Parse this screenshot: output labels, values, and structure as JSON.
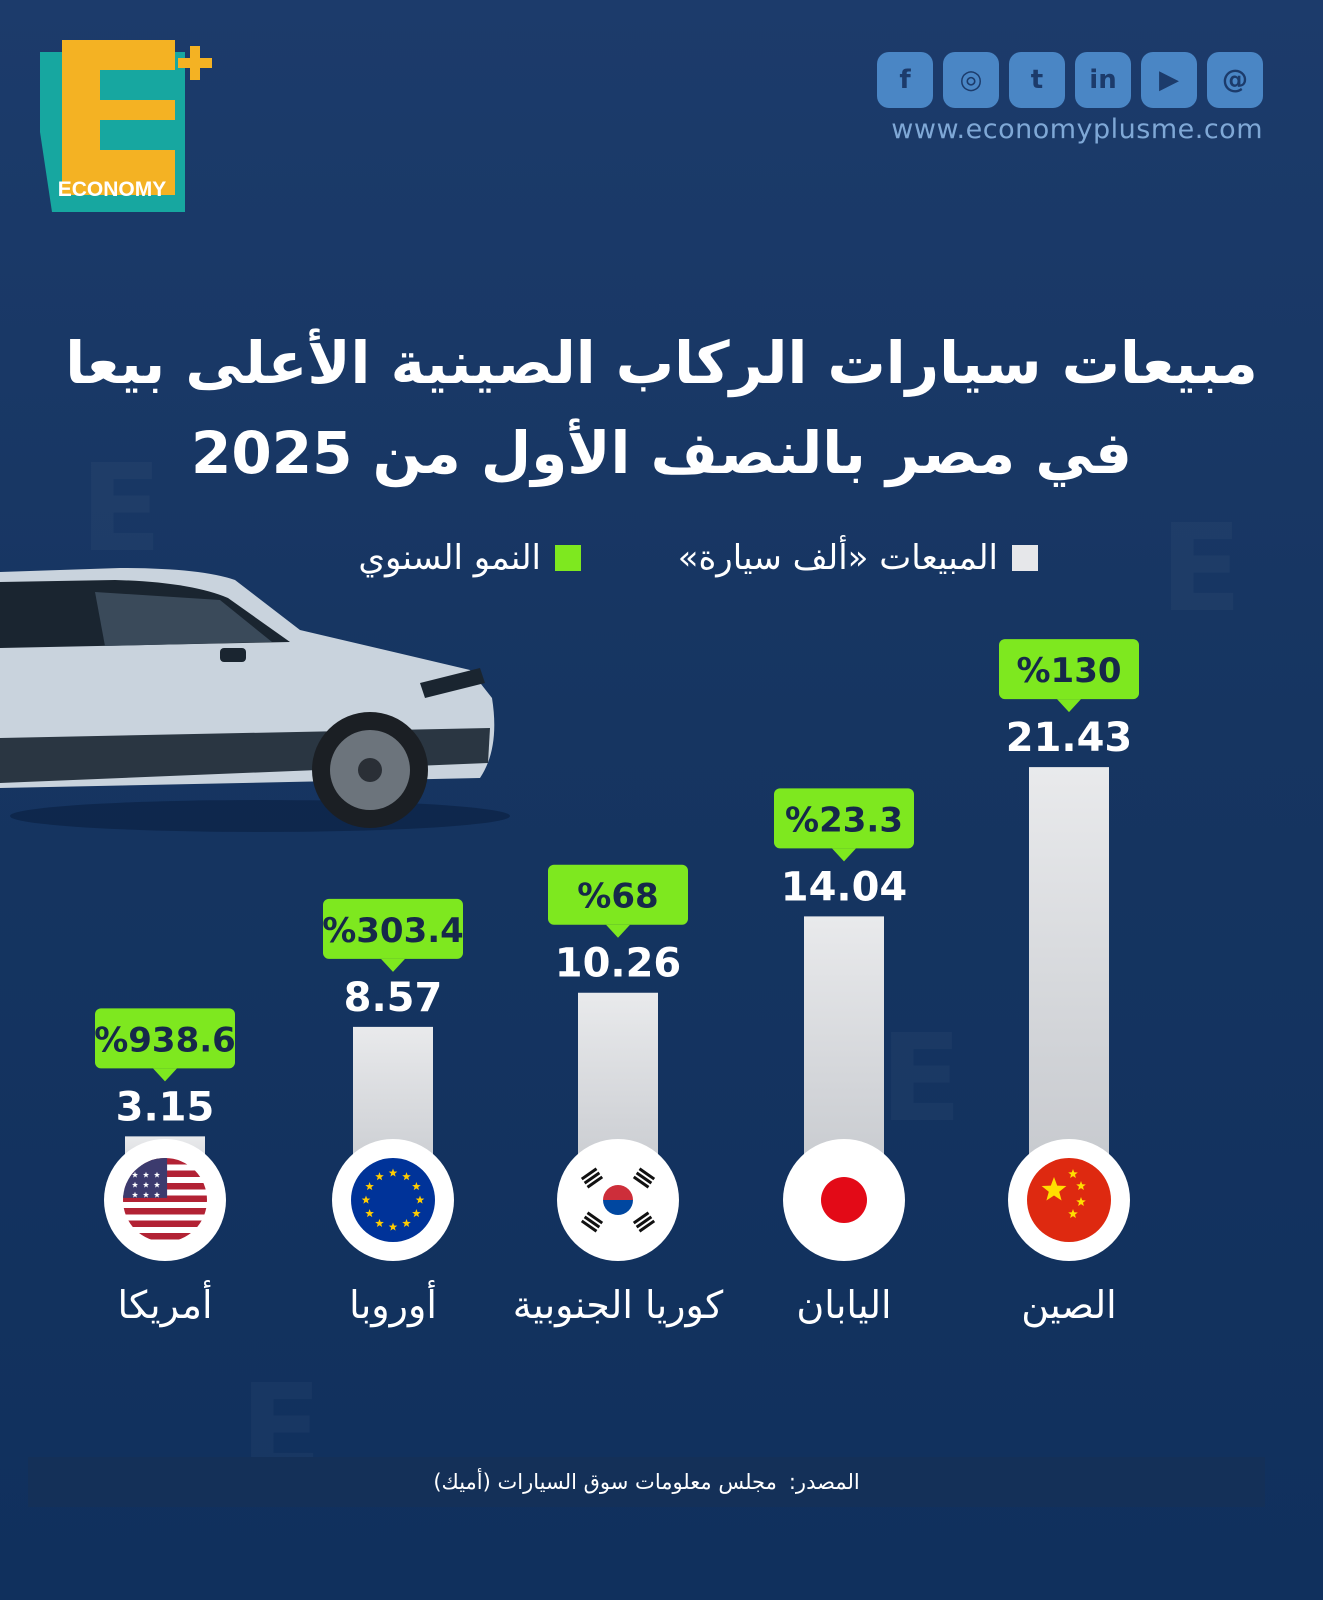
{
  "brand": {
    "logo_letter": "E",
    "logo_word": "ECONOMY",
    "website": "www.economyplusme.com",
    "social_icons": [
      "facebook-icon",
      "instagram-icon",
      "twitter-icon",
      "linkedin-icon",
      "youtube-icon",
      "threads-icon"
    ],
    "accent_yellow": "#f4b223",
    "accent_teal": "#17a7a0",
    "accent_green": "#8ee62a"
  },
  "header": {
    "title_line1": "مبيعات سيارات الركاب الصينية الأعلى بيعا",
    "title_line2": "في مصر بالنصف الأول من 2025"
  },
  "legend": {
    "sales_label": "المبيعات «ألف سيارة»",
    "growth_label": "النمو السنوي",
    "sales_color": "#e6e7ea",
    "growth_color": "#7ee81f"
  },
  "chart_data": {
    "type": "bar",
    "categories": [
      "الصين",
      "اليابان",
      "كوريا الجنوبية",
      "أوروبا",
      "أمريكا"
    ],
    "series": [
      {
        "name": "المبيعات «ألف سيارة»",
        "values": [
          21.43,
          14.04,
          10.26,
          8.57,
          3.15
        ]
      },
      {
        "name": "النمو السنوي",
        "values": [
          130,
          23.3,
          68,
          303.4,
          938.6
        ]
      }
    ],
    "value_labels": [
      "21.43",
      "14.04",
      "10.26",
      "8.57",
      "3.15"
    ],
    "growth_labels": [
      "%130",
      "%23.3",
      "%68",
      "%303.4",
      "%938.6"
    ],
    "flags": [
      "china-flag-icon",
      "japan-flag-icon",
      "south-korea-flag-icon",
      "eu-flag-icon",
      "usa-flag-icon"
    ],
    "legend_position": "top"
  },
  "footer": {
    "source_label": "المصدر:",
    "source_text": "مجلس معلومات سوق السيارات (أميك)"
  }
}
